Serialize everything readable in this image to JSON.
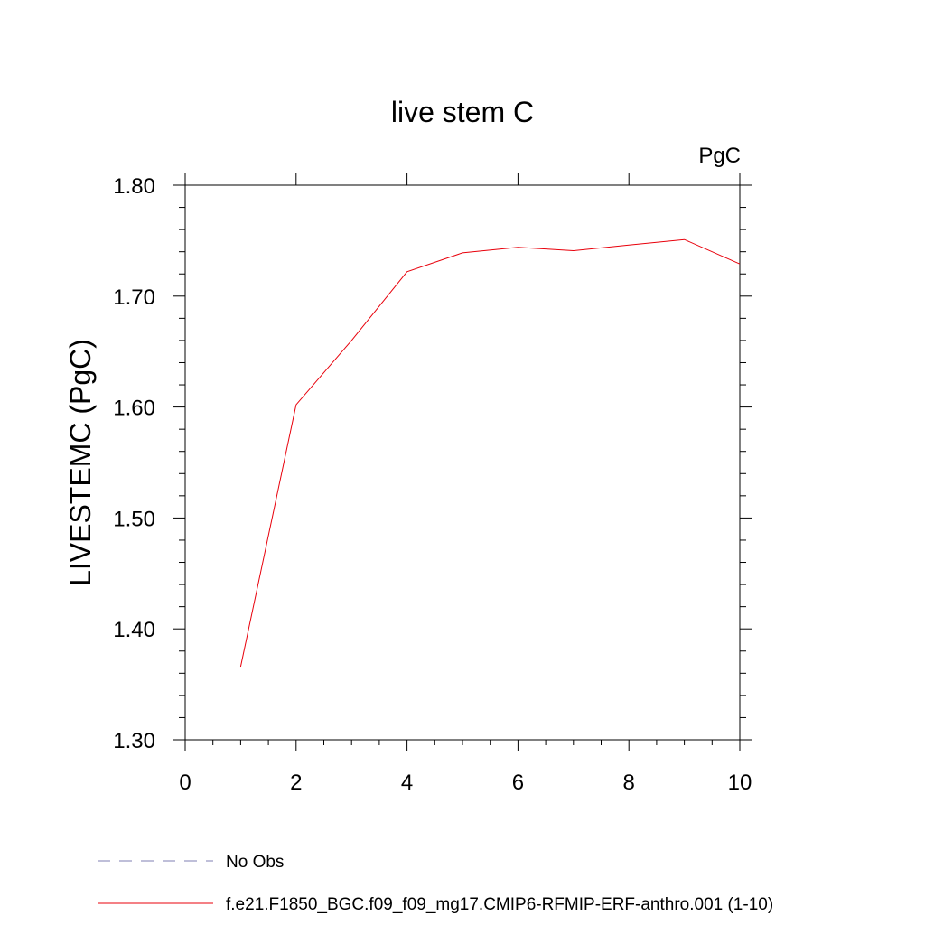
{
  "chart_data": {
    "type": "line",
    "title": "live stem C",
    "units_label": "PgC",
    "ylabel": "LIVESTEMC  (PgC)",
    "xlabel": "",
    "xlim": [
      0,
      10
    ],
    "ylim": [
      1.3,
      1.8
    ],
    "x_ticks": [
      "0",
      "2",
      "4",
      "6",
      "8",
      "10"
    ],
    "y_ticks": [
      "1.30",
      "1.40",
      "1.50",
      "1.60",
      "1.70",
      "1.80"
    ],
    "grid": false,
    "series": [
      {
        "name": "f.e21.F1850_BGC.f09_f09_mg17.CMIP6-RFMIP-ERF-anthro.001 (1-10)",
        "color": "#e8000b",
        "style": "solid",
        "x": [
          1,
          2,
          3,
          4,
          5,
          6,
          7,
          8,
          9,
          10
        ],
        "y": [
          1.366,
          1.602,
          1.66,
          1.722,
          1.739,
          1.744,
          1.741,
          1.746,
          1.751,
          1.729
        ]
      }
    ],
    "legend": {
      "placement": "bottom-left",
      "entries": [
        {
          "label": "No Obs",
          "color": "#7f7fb3",
          "style": "dashed"
        },
        {
          "label": "f.e21.F1850_BGC.f09_f09_mg17.CMIP6-RFMIP-ERF-anthro.001 (1-10)",
          "color": "#e8000b",
          "style": "solid"
        }
      ]
    }
  }
}
